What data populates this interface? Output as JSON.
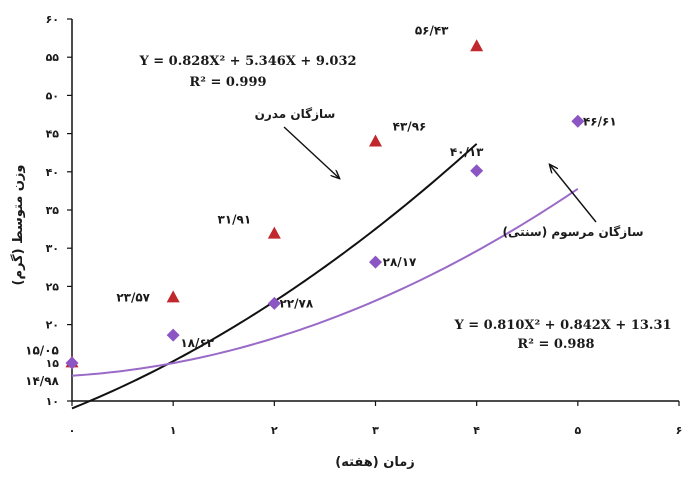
{
  "chart_data": {
    "type": "scatter",
    "xlabel": "زمان (هفته)",
    "ylabel": "وزن متوسط (گرم)",
    "xlim": [
      0,
      6
    ],
    "ylim": [
      10,
      60
    ],
    "x_ticks": [
      {
        "value": 0,
        "label": "۰"
      },
      {
        "value": 1,
        "label": "۱"
      },
      {
        "value": 2,
        "label": "۲"
      },
      {
        "value": 3,
        "label": "۳"
      },
      {
        "value": 4,
        "label": "۴"
      },
      {
        "value": 5,
        "label": "۵"
      },
      {
        "value": 6,
        "label": "۶"
      }
    ],
    "y_ticks": [
      {
        "value": 10,
        "label": "۱۰"
      },
      {
        "value": 15,
        "label": "۱۵"
      },
      {
        "value": 20,
        "label": "۲۰"
      },
      {
        "value": 25,
        "label": "۲۵"
      },
      {
        "value": 30,
        "label": "۳۰"
      },
      {
        "value": 35,
        "label": "۳۵"
      },
      {
        "value": 40,
        "label": "۴۰"
      },
      {
        "value": 45,
        "label": "۴۵"
      },
      {
        "value": 50,
        "label": "۵۰"
      },
      {
        "value": 55,
        "label": "۵۵"
      },
      {
        "value": 60,
        "label": "۶۰"
      }
    ],
    "grid": false,
    "series": [
      {
        "name": "سازگان مدرن",
        "marker": "triangle",
        "color": "#c0282d",
        "line_color": "#111111",
        "trend": {
          "a": 0.828,
          "b": 5.346,
          "c": 9.032
        },
        "equation": "Y = 0.828X² + 5.346X + 9.032",
        "r2": "R² = 0.999",
        "points": [
          {
            "x": 0,
            "y": 15.05,
            "label": "۱۵/۰۵"
          },
          {
            "x": 1,
            "y": 23.57,
            "label": "۲۳/۵۷"
          },
          {
            "x": 2,
            "y": 31.91,
            "label": "۳۱/۹۱"
          },
          {
            "x": 3,
            "y": 43.96,
            "label": "۴۳/۹۶"
          },
          {
            "x": 4,
            "y": 56.43,
            "label": "۵۶/۴۳"
          }
        ]
      },
      {
        "name": "سازگان مرسوم (سنتی)",
        "marker": "diamond",
        "color": "#8b55c4",
        "line_color": "#9a6ac8",
        "trend": {
          "a": 0.81,
          "b": 0.842,
          "c": 13.31
        },
        "equation": "Y = 0.810X² + 0.842X + 13.31",
        "r2": "R² = 0.988",
        "points": [
          {
            "x": 0,
            "y": 14.98,
            "label": "۱۴/۹۸"
          },
          {
            "x": 1,
            "y": 18.63,
            "label": "۱۸/۶۳"
          },
          {
            "x": 2,
            "y": 22.78,
            "label": "۲۲/۷۸"
          },
          {
            "x": 3,
            "y": 28.17,
            "label": "۲۸/۱۷"
          },
          {
            "x": 4,
            "y": 40.13,
            "label": "۴۰/۱۳"
          },
          {
            "x": 5,
            "y": 46.61,
            "label": "۴۶/۶۱"
          }
        ]
      }
    ]
  }
}
